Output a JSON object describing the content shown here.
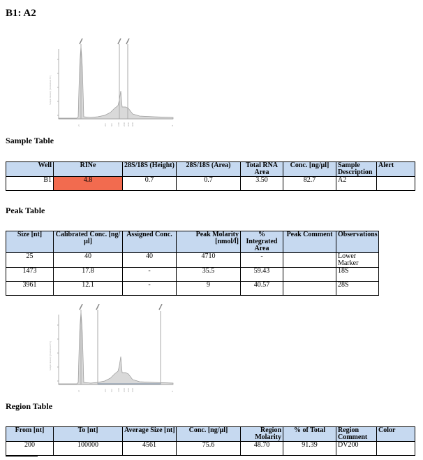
{
  "page_title": "B1: A2",
  "colors": {
    "header_bg": "#c6d9f0",
    "rine_highlight": "#f26b4f",
    "trace_fill": "#d9d9d9",
    "trace_line": "#999999"
  },
  "sample_table": {
    "heading": "Sample Table",
    "headers": [
      "Well",
      "RINe",
      "28S/18S (Height)",
      "28S/18S (Area)",
      "Total RNA Area",
      "Conc. [ng/µl]",
      "Sample Description",
      "Alert"
    ],
    "rows": [
      [
        "B1",
        "4.8",
        "0.7",
        "0.7",
        "3.50",
        "82.7",
        "A2",
        ""
      ]
    ]
  },
  "peak_table": {
    "heading": "Peak Table",
    "headers": [
      "Size [nt]",
      "Calibrated Conc. [ng/µl]",
      "Assigned Conc.",
      "Peak Molarity [nmol/l]",
      "% Integrated Area",
      "Peak Comment",
      "Observations"
    ],
    "rows": [
      [
        "25",
        "40",
        "40",
        "4710",
        "-",
        "",
        "Lower Marker"
      ],
      [
        "1473",
        "17.8",
        "-",
        "35.5",
        "59.43",
        "",
        "18S"
      ],
      [
        "3961",
        "12.1",
        "-",
        "9",
        "40.57",
        "",
        "28S"
      ]
    ]
  },
  "region_table": {
    "heading": "Region Table",
    "headers": [
      "From [nt]",
      "To [nt]",
      "Average Size [nt]",
      "Conc. [ng/µl]",
      "Region Molarity",
      "% of Total",
      "Region Comment",
      "Color"
    ],
    "rows": [
      [
        "200",
        "100000",
        "4561",
        "75.6",
        "48.70",
        "91.39",
        "DV200",
        ""
      ]
    ]
  },
  "icons": {
    "electropherogram_1": "electropherogram-plot-icon",
    "electropherogram_2": "region-electropherogram-plot-icon"
  }
}
